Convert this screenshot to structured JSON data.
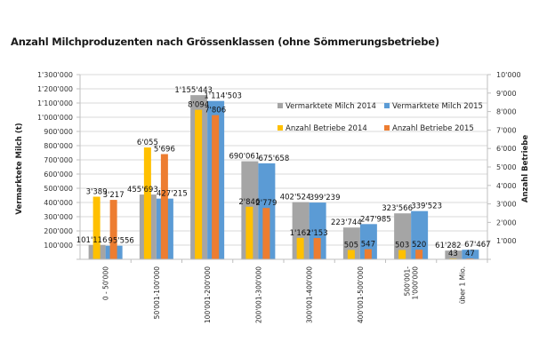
{
  "chart_data": {
    "type": "bar",
    "title": "Anzahl Milchproduzenten nach Grössenklassen (ohne Sömmerungsbetriebe)",
    "ylabel": "Vermarktete Milch (t)",
    "y2label": "Anzahl Betriebe",
    "ylim": [
      0,
      1300000
    ],
    "y2lim": [
      0,
      10000
    ],
    "yticks": [
      "",
      "100'000",
      "200'000",
      "300'000",
      "400'000",
      "500'000",
      "600'000",
      "700'000",
      "800'000",
      "900'000",
      "1'000'000",
      "1'100'000",
      "1'200'000",
      "1'300'000"
    ],
    "y2ticks": [
      "",
      "1'000",
      "2'000",
      "3'000",
      "4'000",
      "5'000",
      "6'000",
      "7'000",
      "8'000",
      "9'000",
      "10'000"
    ],
    "grid": true,
    "legend_position": "top-right",
    "categories": [
      "0 - 50'000",
      "50'001-100'000",
      "100'001-200'000",
      "200'001-300'000",
      "300'001-400'000",
      "400'001-500'000",
      "500'001-\n1'000'000",
      "über 1 Mio."
    ],
    "series": [
      {
        "name": "Vermarktete Milch 2014",
        "axis": "left",
        "color": "#a5a5a5",
        "values": [
          101116,
          455693,
          1155443,
          690061,
          402524,
          223744,
          323566,
          61282
        ],
        "labels": [
          "101'116",
          "455'693",
          "1'155'443",
          "690'061",
          "402'524",
          "223'744",
          "323'566",
          "61'282"
        ]
      },
      {
        "name": "Vermarktete Milch 2015",
        "axis": "left",
        "color": "#5b9bd5",
        "values": [
          95556,
          427215,
          1114503,
          675658,
          399239,
          247985,
          339523,
          67467
        ],
        "labels": [
          "95'556",
          "427'215",
          "1'114'503",
          "675'658",
          "399'239",
          "247'985",
          "339'523",
          "67'467"
        ]
      },
      {
        "name": "Anzahl Betriebe 2014",
        "axis": "right",
        "color": "#ffc000",
        "values": [
          3389,
          6055,
          8094,
          2846,
          1162,
          505,
          503,
          43
        ],
        "labels": [
          "3'389",
          "6'055",
          "8'094",
          "2'846",
          "1'162",
          "505",
          "503",
          "43"
        ]
      },
      {
        "name": "Anzahl Betriebe 2015",
        "axis": "right",
        "color": "#ed7d31",
        "values": [
          3217,
          5696,
          7806,
          2779,
          1153,
          547,
          520,
          47
        ],
        "labels": [
          "3'217",
          "5'696",
          "7'806",
          "2'779",
          "1'153",
          "547",
          "520",
          "47"
        ]
      }
    ]
  }
}
